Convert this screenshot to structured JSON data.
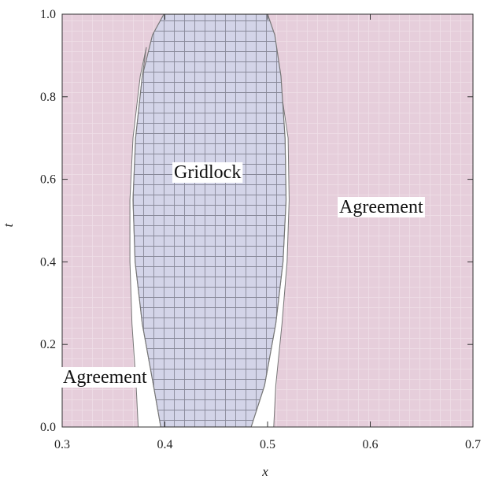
{
  "chart_data": {
    "type": "region",
    "title": "",
    "xlabel": "x",
    "ylabel": "t",
    "xlim": [
      0.3,
      0.7
    ],
    "ylim": [
      0.0,
      1.0
    ],
    "x_ticks": [
      "0.3",
      "0.4",
      "0.5",
      "0.6",
      "0.7"
    ],
    "y_ticks": [
      "0.0",
      "0.2",
      "0.4",
      "0.6",
      "0.8",
      "1.0"
    ],
    "colors": {
      "agreement": "#e6cedb",
      "gridlock": "#d3d4e8",
      "boundary": "#777777"
    },
    "regions": [
      {
        "name": "Agreement",
        "label": "Agreement",
        "label_position": {
          "x": 0.325,
          "t": 0.12
        }
      },
      {
        "name": "Gridlock",
        "label": "Gridlock",
        "label_position": {
          "x": 0.423,
          "t": 0.615
        },
        "boundary": [
          {
            "t": 1.0,
            "x": 0.399
          },
          {
            "t": 0.95,
            "x": 0.388
          },
          {
            "t": 0.85,
            "x": 0.378
          },
          {
            "t": 0.7,
            "x": 0.3715
          },
          {
            "t": 0.55,
            "x": 0.369
          },
          {
            "t": 0.4,
            "x": 0.371
          },
          {
            "t": 0.25,
            "x": 0.378
          },
          {
            "t": 0.1,
            "x": 0.389
          },
          {
            "t": 0.0,
            "x": 0.396
          },
          {
            "t": 0.0,
            "x": 0.484
          },
          {
            "t": 0.1,
            "x": 0.497
          },
          {
            "t": 0.25,
            "x": 0.508
          },
          {
            "t": 0.4,
            "x": 0.515
          },
          {
            "t": 0.55,
            "x": 0.518
          },
          {
            "t": 0.7,
            "x": 0.517
          },
          {
            "t": 0.85,
            "x": 0.513
          },
          {
            "t": 0.95,
            "x": 0.507
          },
          {
            "t": 1.0,
            "x": 0.5
          }
        ]
      },
      {
        "name": "Agreement",
        "label": "Agreement",
        "label_position": {
          "x": 0.569,
          "t": 0.527
        }
      }
    ],
    "gaps": [
      {
        "side": "left",
        "boundary": [
          {
            "t": 0.0,
            "x": 0.374
          },
          {
            "t": 0.1,
            "x": 0.372
          },
          {
            "t": 0.25,
            "x": 0.368
          },
          {
            "t": 0.4,
            "x": 0.366
          },
          {
            "t": 0.55,
            "x": 0.366
          },
          {
            "t": 0.7,
            "x": 0.369
          },
          {
            "t": 0.85,
            "x": 0.376
          },
          {
            "t": 0.92,
            "x": 0.382
          },
          {
            "t": 0.85,
            "x": 0.378
          },
          {
            "t": 0.7,
            "x": 0.3715
          },
          {
            "t": 0.55,
            "x": 0.369
          },
          {
            "t": 0.4,
            "x": 0.371
          },
          {
            "t": 0.25,
            "x": 0.378
          },
          {
            "t": 0.1,
            "x": 0.389
          },
          {
            "t": 0.0,
            "x": 0.396
          }
        ]
      },
      {
        "side": "right",
        "boundary": [
          {
            "t": 0.0,
            "x": 0.484
          },
          {
            "t": 0.1,
            "x": 0.497
          },
          {
            "t": 0.25,
            "x": 0.508
          },
          {
            "t": 0.4,
            "x": 0.515
          },
          {
            "t": 0.55,
            "x": 0.518
          },
          {
            "t": 0.7,
            "x": 0.517
          },
          {
            "t": 0.8,
            "x": 0.514
          },
          {
            "t": 0.7,
            "x": 0.52
          },
          {
            "t": 0.55,
            "x": 0.521
          },
          {
            "t": 0.4,
            "x": 0.519
          },
          {
            "t": 0.25,
            "x": 0.514
          },
          {
            "t": 0.1,
            "x": 0.508
          },
          {
            "t": 0.0,
            "x": 0.506
          }
        ]
      }
    ],
    "grid": false,
    "legend": "none"
  }
}
